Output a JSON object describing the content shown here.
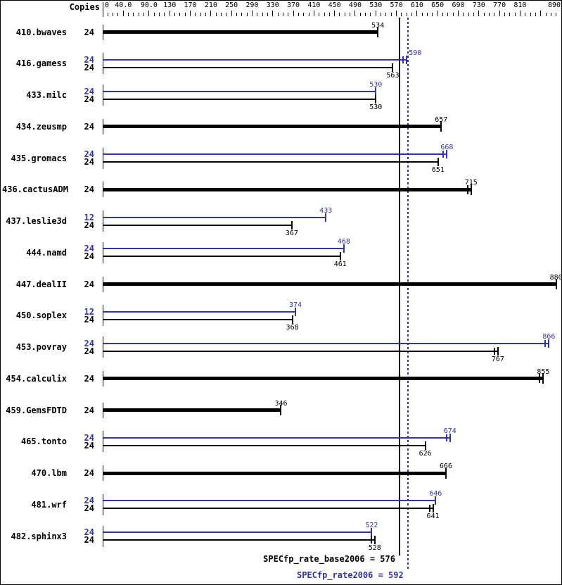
{
  "colors": {
    "peak": "#3232aa",
    "base": "#000000",
    "background": "#ffffff",
    "border": "#000000"
  },
  "chart_data": {
    "type": "bar",
    "orientation": "horizontal",
    "copies_header": "Copies",
    "axis": {
      "min": 0,
      "max": 890,
      "minor_step": 10,
      "tick_values": [
        0,
        40,
        90,
        130,
        170,
        210,
        250,
        290,
        330,
        370,
        410,
        450,
        490,
        530,
        570,
        610,
        650,
        690,
        730,
        770,
        810,
        890
      ],
      "tick_labels": [
        "0",
        "40.0",
        "90.0",
        "130",
        "170",
        "210",
        "250",
        "290",
        "330",
        "370",
        "410",
        "450",
        "490",
        "530",
        "570",
        "610",
        "650",
        "690",
        "730",
        "770",
        "810",
        "890"
      ],
      "unlabeled_major_ticks": [
        850
      ]
    },
    "benchmarks": [
      {
        "name": "410.bwaves",
        "bars": [
          {
            "series": "base",
            "copies": "24",
            "value": 534,
            "run_marks": 1
          }
        ]
      },
      {
        "name": "416.gamess",
        "bars": [
          {
            "series": "peak",
            "copies": "24",
            "value": 590,
            "run_marks": 2,
            "label_side": "right"
          },
          {
            "series": "base",
            "copies": "24",
            "value": 563,
            "run_marks": 1
          }
        ]
      },
      {
        "name": "433.milc",
        "bars": [
          {
            "series": "peak",
            "copies": "24",
            "value": 530,
            "run_marks": 1
          },
          {
            "series": "base",
            "copies": "24",
            "value": 530,
            "run_marks": 1
          }
        ]
      },
      {
        "name": "434.zeusmp",
        "bars": [
          {
            "series": "base",
            "copies": "24",
            "value": 657,
            "run_marks": 1
          }
        ]
      },
      {
        "name": "435.gromacs",
        "bars": [
          {
            "series": "peak",
            "copies": "24",
            "value": 668,
            "run_marks": 2
          },
          {
            "series": "base",
            "copies": "24",
            "value": 651,
            "run_marks": 1
          }
        ]
      },
      {
        "name": "436.cactusADM",
        "bars": [
          {
            "series": "base",
            "copies": "24",
            "value": 715,
            "run_marks": 2
          }
        ]
      },
      {
        "name": "437.leslie3d",
        "bars": [
          {
            "series": "peak",
            "copies": "12",
            "value": 433,
            "run_marks": 1
          },
          {
            "series": "base",
            "copies": "24",
            "value": 367,
            "run_marks": 1
          }
        ]
      },
      {
        "name": "444.namd",
        "bars": [
          {
            "series": "peak",
            "copies": "24",
            "value": 468,
            "run_marks": 1
          },
          {
            "series": "base",
            "copies": "24",
            "value": 461,
            "run_marks": 1
          }
        ]
      },
      {
        "name": "447.dealII",
        "bars": [
          {
            "series": "base",
            "copies": "24",
            "value": 880,
            "run_marks": 1
          }
        ]
      },
      {
        "name": "450.soplex",
        "bars": [
          {
            "series": "peak",
            "copies": "12",
            "value": 374,
            "run_marks": 1
          },
          {
            "series": "base",
            "copies": "24",
            "value": 368,
            "run_marks": 1
          }
        ]
      },
      {
        "name": "453.povray",
        "bars": [
          {
            "series": "peak",
            "copies": "24",
            "value": 866,
            "run_marks": 2
          },
          {
            "series": "base",
            "copies": "24",
            "value": 767,
            "run_marks": 2
          }
        ]
      },
      {
        "name": "454.calculix",
        "bars": [
          {
            "series": "base",
            "copies": "24",
            "value": 855,
            "run_marks": 2
          }
        ]
      },
      {
        "name": "459.GemsFDTD",
        "bars": [
          {
            "series": "base",
            "copies": "24",
            "value": 346,
            "run_marks": 1
          }
        ]
      },
      {
        "name": "465.tonto",
        "bars": [
          {
            "series": "peak",
            "copies": "24",
            "value": 674,
            "run_marks": 2
          },
          {
            "series": "base",
            "copies": "24",
            "value": 626,
            "run_marks": 1
          }
        ]
      },
      {
        "name": "470.lbm",
        "bars": [
          {
            "series": "base",
            "copies": "24",
            "value": 666,
            "run_marks": 1
          }
        ]
      },
      {
        "name": "481.wrf",
        "bars": [
          {
            "series": "peak",
            "copies": "24",
            "value": 646,
            "run_marks": 1
          },
          {
            "series": "base",
            "copies": "24",
            "value": 641,
            "run_marks": 2
          }
        ]
      },
      {
        "name": "482.sphinx3",
        "bars": [
          {
            "series": "peak",
            "copies": "24",
            "value": 522,
            "run_marks": 1
          },
          {
            "series": "base",
            "copies": "24",
            "value": 528,
            "run_marks": 2
          }
        ]
      }
    ],
    "reference_lines": [
      {
        "id": "base",
        "label": "SPECfp_rate_base2006 = 576",
        "value": 576,
        "style": "solid",
        "color": "#000000"
      },
      {
        "id": "peak",
        "label": "SPECfp_rate2006 = 592",
        "value": 592,
        "style": "dotted",
        "color": "#3232aa"
      }
    ]
  }
}
